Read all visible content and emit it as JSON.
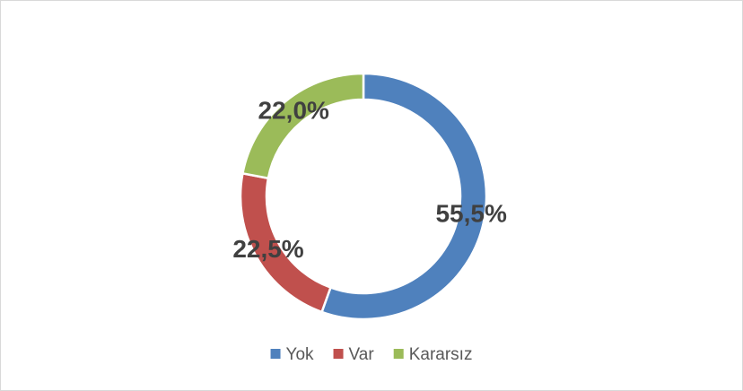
{
  "chart_data": {
    "type": "doughnut",
    "categories": [
      "Yok",
      "Var",
      "Kararsız"
    ],
    "values": [
      55.5,
      22.5,
      22.0
    ],
    "value_labels": [
      "55,5%",
      "22,5%",
      "22,0%"
    ],
    "colors": [
      "#4f81bd",
      "#c0504d",
      "#9bbb59"
    ],
    "legend": "bottom"
  }
}
